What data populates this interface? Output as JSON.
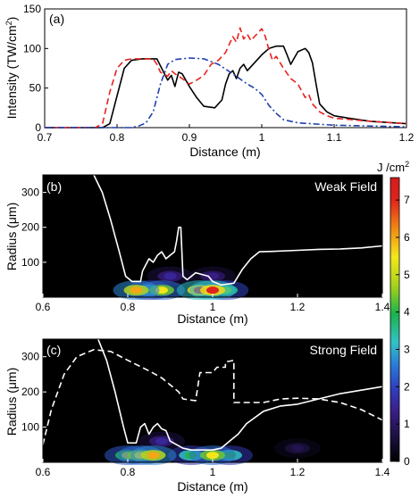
{
  "chart_data": [
    {
      "type": "line",
      "panel_label": "(a)",
      "xlabel": "Distance (m)",
      "ylabel": "Intensity (TW/cm",
      "ylabel_sup": "2",
      "ylabel_close": ")",
      "xlim": [
        0.7,
        1.2
      ],
      "ylim": [
        0,
        150
      ],
      "xticks": [
        "0.7",
        "0.8",
        "0.9",
        "1",
        "1.1",
        "1.2"
      ],
      "yticks": [
        "0",
        "50",
        "100",
        "150"
      ],
      "series": [
        {
          "style": "solid",
          "color": "#000000",
          "points": [
            [
              0.7,
              0
            ],
            [
              0.78,
              0
            ],
            [
              0.79,
              5
            ],
            [
              0.8,
              40
            ],
            [
              0.81,
              75
            ],
            [
              0.82,
              85
            ],
            [
              0.835,
              87
            ],
            [
              0.855,
              87
            ],
            [
              0.86,
              78
            ],
            [
              0.87,
              60
            ],
            [
              0.875,
              66
            ],
            [
              0.88,
              52
            ],
            [
              0.885,
              70
            ],
            [
              0.89,
              68
            ],
            [
              0.9,
              52
            ],
            [
              0.91,
              38
            ],
            [
              0.92,
              27
            ],
            [
              0.935,
              25
            ],
            [
              0.945,
              35
            ],
            [
              0.95,
              55
            ],
            [
              0.955,
              68
            ],
            [
              0.96,
              72
            ],
            [
              0.965,
              62
            ],
            [
              0.97,
              75
            ],
            [
              0.975,
              80
            ],
            [
              0.98,
              72
            ],
            [
              0.99,
              82
            ],
            [
              1.0,
              92
            ],
            [
              1.01,
              100
            ],
            [
              1.02,
              103
            ],
            [
              1.03,
              103
            ],
            [
              1.035,
              92
            ],
            [
              1.04,
              80
            ],
            [
              1.045,
              88
            ],
            [
              1.05,
              96
            ],
            [
              1.06,
              100
            ],
            [
              1.065,
              95
            ],
            [
              1.07,
              82
            ],
            [
              1.075,
              55
            ],
            [
              1.08,
              30
            ],
            [
              1.09,
              20
            ],
            [
              1.1,
              15
            ],
            [
              1.12,
              12
            ],
            [
              1.15,
              8
            ],
            [
              1.2,
              5
            ]
          ]
        },
        {
          "style": "dashed",
          "color": "#e8221f",
          "points": [
            [
              0.7,
              0
            ],
            [
              0.77,
              0
            ],
            [
              0.78,
              5
            ],
            [
              0.79,
              45
            ],
            [
              0.8,
              75
            ],
            [
              0.81,
              85
            ],
            [
              0.82,
              87
            ],
            [
              0.84,
              87
            ],
            [
              0.85,
              87
            ],
            [
              0.855,
              80
            ],
            [
              0.86,
              70
            ],
            [
              0.87,
              65
            ],
            [
              0.875,
              72
            ],
            [
              0.88,
              68
            ],
            [
              0.89,
              62
            ],
            [
              0.9,
              55
            ],
            [
              0.91,
              60
            ],
            [
              0.92,
              66
            ],
            [
              0.93,
              80
            ],
            [
              0.94,
              85
            ],
            [
              0.95,
              95
            ],
            [
              0.96,
              115
            ],
            [
              0.965,
              108
            ],
            [
              0.97,
              126
            ],
            [
              0.975,
              112
            ],
            [
              0.98,
              118
            ],
            [
              0.985,
              110
            ],
            [
              0.99,
              115
            ],
            [
              1.0,
              125
            ],
            [
              1.005,
              115
            ],
            [
              1.01,
              98
            ],
            [
              1.015,
              85
            ],
            [
              1.02,
              90
            ],
            [
              1.03,
              75
            ],
            [
              1.04,
              62
            ],
            [
              1.05,
              55
            ],
            [
              1.06,
              38
            ],
            [
              1.065,
              42
            ],
            [
              1.07,
              30
            ],
            [
              1.08,
              20
            ],
            [
              1.09,
              15
            ],
            [
              1.1,
              12
            ],
            [
              1.15,
              8
            ],
            [
              1.2,
              5
            ]
          ]
        },
        {
          "style": "dashdot",
          "color": "#1f3fae",
          "points": [
            [
              0.7,
              0
            ],
            [
              0.82,
              0
            ],
            [
              0.83,
              2
            ],
            [
              0.84,
              6
            ],
            [
              0.85,
              20
            ],
            [
              0.86,
              55
            ],
            [
              0.87,
              80
            ],
            [
              0.88,
              86
            ],
            [
              0.9,
              88
            ],
            [
              0.92,
              87
            ],
            [
              0.94,
              80
            ],
            [
              0.96,
              68
            ],
            [
              0.98,
              55
            ],
            [
              0.99,
              50
            ],
            [
              1.0,
              42
            ],
            [
              1.01,
              28
            ],
            [
              1.02,
              18
            ],
            [
              1.03,
              10
            ],
            [
              1.05,
              6
            ],
            [
              1.1,
              3
            ],
            [
              1.2,
              1
            ]
          ]
        }
      ]
    },
    {
      "type": "heatmap",
      "panel_label": "(b)",
      "annotation": "Weak Field",
      "xlabel": "Distance (m)",
      "ylabel": "Radius (μm)",
      "xlim": [
        0.6,
        1.4
      ],
      "ylim": [
        0,
        350
      ],
      "xticks": [
        "0.6",
        "0.8",
        "1",
        "1.2",
        "1.4"
      ],
      "yticks": [
        "100",
        "200",
        "300"
      ],
      "hot_spots": [
        {
          "x": 0.82,
          "r": 20,
          "level": 6.0
        },
        {
          "x": 0.85,
          "r": 20,
          "level": 4.0
        },
        {
          "x": 0.88,
          "r": 20,
          "level": 5.5
        },
        {
          "x": 0.97,
          "r": 20,
          "level": 7.0
        },
        {
          "x": 1.0,
          "r": 20,
          "level": 7.0
        },
        {
          "x": 1.03,
          "r": 20,
          "level": 4.5
        },
        {
          "x": 0.9,
          "r": 60,
          "level": 1.5
        },
        {
          "x": 1.0,
          "r": 60,
          "level": 1.3
        }
      ],
      "contours": [
        {
          "style": "solid",
          "color": "#ffffff",
          "points": [
            [
              0.72,
              350
            ],
            [
              0.74,
              300
            ],
            [
              0.76,
              220
            ],
            [
              0.78,
              130
            ],
            [
              0.795,
              60
            ],
            [
              0.81,
              45
            ],
            [
              0.83,
              45
            ],
            [
              0.835,
              75
            ],
            [
              0.85,
              110
            ],
            [
              0.86,
              100
            ],
            [
              0.87,
              120
            ],
            [
              0.88,
              130
            ],
            [
              0.89,
              110
            ],
            [
              0.9,
              120
            ],
            [
              0.91,
              130
            ],
            [
              0.915,
              160
            ],
            [
              0.92,
              200
            ],
            [
              0.925,
              200
            ],
            [
              0.93,
              60
            ],
            [
              0.94,
              50
            ],
            [
              0.95,
              60
            ],
            [
              0.96,
              70
            ],
            [
              0.99,
              60
            ],
            [
              1.0,
              45
            ],
            [
              1.02,
              35
            ],
            [
              1.05,
              40
            ],
            [
              1.07,
              80
            ],
            [
              1.09,
              110
            ],
            [
              1.11,
              130
            ],
            [
              1.14,
              131
            ],
            [
              1.2,
              134
            ],
            [
              1.25,
              137
            ],
            [
              1.3,
              138
            ],
            [
              1.35,
              141
            ],
            [
              1.4,
              147
            ]
          ]
        }
      ]
    },
    {
      "type": "heatmap",
      "panel_label": "(c)",
      "annotation": "Strong Field",
      "xlabel": "Distance (m)",
      "ylabel": "Radius (μm)",
      "xlim": [
        0.6,
        1.4
      ],
      "ylim": [
        0,
        350
      ],
      "xticks": [
        "0.6",
        "0.8",
        "1",
        "1.2",
        "1.4"
      ],
      "yticks": [
        "100",
        "200",
        "300"
      ],
      "hot_spots": [
        {
          "x": 0.8,
          "r": 20,
          "level": 5.0
        },
        {
          "x": 0.83,
          "r": 20,
          "level": 5.5
        },
        {
          "x": 0.86,
          "r": 20,
          "level": 6.0
        },
        {
          "x": 0.95,
          "r": 20,
          "level": 4.0
        },
        {
          "x": 1.0,
          "r": 20,
          "level": 5.5
        },
        {
          "x": 1.04,
          "r": 20,
          "level": 4.0
        },
        {
          "x": 0.88,
          "r": 60,
          "level": 1.5
        },
        {
          "x": 1.2,
          "r": 40,
          "level": 0.8
        }
      ],
      "contours": [
        {
          "style": "solid",
          "color": "#ffffff",
          "points": [
            [
              0.73,
              350
            ],
            [
              0.75,
              290
            ],
            [
              0.77,
              200
            ],
            [
              0.79,
              100
            ],
            [
              0.8,
              55
            ],
            [
              0.82,
              55
            ],
            [
              0.83,
              100
            ],
            [
              0.84,
              110
            ],
            [
              0.85,
              80
            ],
            [
              0.86,
              100
            ],
            [
              0.87,
              110
            ],
            [
              0.88,
              95
            ],
            [
              0.89,
              90
            ],
            [
              0.9,
              60
            ],
            [
              0.93,
              40
            ],
            [
              0.95,
              35
            ],
            [
              1.0,
              35
            ],
            [
              1.02,
              40
            ],
            [
              1.04,
              60
            ],
            [
              1.06,
              80
            ],
            [
              1.08,
              110
            ],
            [
              1.12,
              145
            ],
            [
              1.16,
              160
            ],
            [
              1.2,
              165
            ],
            [
              1.25,
              180
            ],
            [
              1.3,
              195
            ],
            [
              1.35,
              205
            ],
            [
              1.4,
              215
            ]
          ]
        },
        {
          "style": "dashed",
          "color": "#ffffff",
          "points": [
            [
              0.6,
              50
            ],
            [
              0.62,
              150
            ],
            [
              0.65,
              250
            ],
            [
              0.68,
              300
            ],
            [
              0.72,
              320
            ],
            [
              0.76,
              315
            ],
            [
              0.8,
              290
            ],
            [
              0.85,
              260
            ],
            [
              0.88,
              240
            ],
            [
              0.9,
              220
            ],
            [
              0.92,
              200
            ],
            [
              0.93,
              180
            ],
            [
              0.96,
              175
            ],
            [
              0.97,
              255
            ],
            [
              1.0,
              255
            ],
            [
              1.01,
              270
            ],
            [
              1.03,
              270
            ],
            [
              1.03,
              285
            ],
            [
              1.05,
              290
            ],
            [
              1.05,
              170
            ],
            [
              1.08,
              170
            ],
            [
              1.12,
              170
            ],
            [
              1.16,
              180
            ],
            [
              1.2,
              182
            ],
            [
              1.25,
              180
            ],
            [
              1.3,
              170
            ],
            [
              1.35,
              150
            ],
            [
              1.4,
              120
            ]
          ]
        }
      ]
    }
  ],
  "colorbar": {
    "unit": "J /cm",
    "unit_sup": "2",
    "range": [
      0,
      7.6
    ],
    "ticks": [
      "0",
      "1",
      "2",
      "3",
      "4",
      "5",
      "6",
      "7"
    ]
  }
}
